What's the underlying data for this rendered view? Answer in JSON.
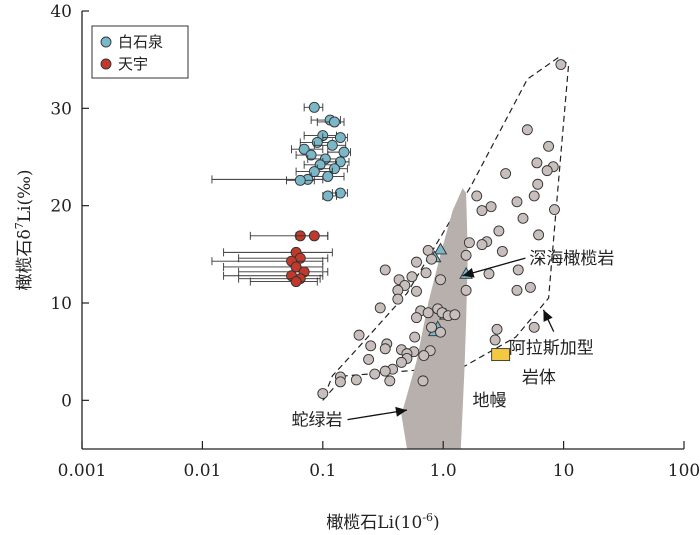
{
  "chart_data": {
    "type": "scatter",
    "xscale": "log",
    "xlim": [
      0.001,
      100
    ],
    "ylim": [
      -5,
      40
    ],
    "xticks": [
      0.001,
      0.01,
      0.1,
      1.0,
      10,
      100
    ],
    "xtick_labels": [
      "0.001",
      "0.01",
      "0.1",
      "1.0",
      "10",
      "100"
    ],
    "yticks": [
      0,
      10,
      20,
      30,
      40
    ],
    "ytick_labels": [
      "0",
      "10",
      "20",
      "30",
      "40"
    ],
    "xlabel_prefix": "橄榄石Li(10",
    "xlabel_sup": "-6",
    "xlabel_suffix": ")",
    "ylabel_prefix": "橄榄石δ",
    "ylabel_sup": "7",
    "ylabel_suffix": "Li(‰)",
    "grid": false,
    "legend": {
      "position": "top-left",
      "entries": [
        {
          "label": "白石泉",
          "color": "#7ab8c9"
        },
        {
          "label": "天宇",
          "color": "#c0392b"
        }
      ]
    },
    "series": [
      {
        "name": "白石泉",
        "marker": "circle",
        "color": "#7ab8c9",
        "points": [
          {
            "x": 0.085,
            "y": 30.1,
            "xerr": [
              0.07,
              0.1
            ]
          },
          {
            "x": 0.115,
            "y": 28.8,
            "xerr": [
              0.08,
              0.14
            ]
          },
          {
            "x": 0.125,
            "y": 28.6,
            "xerr": [
              0.09,
              0.15
            ]
          },
          {
            "x": 0.1,
            "y": 27.2,
            "xerr": [
              0.07,
              0.13
            ]
          },
          {
            "x": 0.14,
            "y": 27.0,
            "xerr": [
              0.1,
              0.16
            ]
          },
          {
            "x": 0.09,
            "y": 26.5,
            "xerr": [
              0.065,
              0.12
            ]
          },
          {
            "x": 0.12,
            "y": 26.2,
            "xerr": [
              0.085,
              0.155
            ]
          },
          {
            "x": 0.07,
            "y": 25.8,
            "xerr": [
              0.055,
              0.1
            ]
          },
          {
            "x": 0.15,
            "y": 25.5,
            "xerr": [
              0.11,
              0.17
            ]
          },
          {
            "x": 0.08,
            "y": 25.2,
            "xerr": [
              0.06,
              0.11
            ]
          },
          {
            "x": 0.105,
            "y": 24.8,
            "xerr": [
              0.075,
              0.14
            ]
          },
          {
            "x": 0.14,
            "y": 24.5,
            "xerr": [
              0.1,
              0.165
            ]
          },
          {
            "x": 0.095,
            "y": 24.2,
            "xerr": [
              0.07,
              0.13
            ]
          },
          {
            "x": 0.125,
            "y": 23.8,
            "xerr": [
              0.09,
              0.16
            ]
          },
          {
            "x": 0.085,
            "y": 23.5,
            "xerr": [
              0.06,
              0.12
            ]
          },
          {
            "x": 0.11,
            "y": 23.0,
            "xerr": [
              0.08,
              0.15
            ]
          },
          {
            "x": 0.075,
            "y": 22.7,
            "xerr": [
              0.012,
              0.1
            ]
          },
          {
            "x": 0.065,
            "y": 22.6,
            "xerr": [
              0.05,
              0.085
            ]
          },
          {
            "x": 0.14,
            "y": 21.3,
            "xerr": [
              0.12,
              0.16
            ]
          },
          {
            "x": 0.11,
            "y": 21.0,
            "xerr": [
              0.1,
              0.13
            ]
          }
        ]
      },
      {
        "name": "天宇",
        "marker": "circle",
        "color": "#c0392b",
        "points": [
          {
            "x": 0.065,
            "y": 16.9,
            "xerr": [
              0.025,
              0.11
            ]
          },
          {
            "x": 0.085,
            "y": 16.9,
            "xerr": [
              0.06,
              0.11
            ]
          },
          {
            "x": 0.06,
            "y": 15.2,
            "xerr": [
              0.015,
              0.12
            ]
          },
          {
            "x": 0.065,
            "y": 14.6,
            "xerr": [
              0.02,
              0.11
            ]
          },
          {
            "x": 0.055,
            "y": 14.3,
            "xerr": [
              0.012,
              0.1
            ]
          },
          {
            "x": 0.06,
            "y": 13.7,
            "xerr": [
              0.015,
              0.1
            ]
          },
          {
            "x": 0.07,
            "y": 13.2,
            "xerr": [
              0.02,
              0.11
            ]
          },
          {
            "x": 0.055,
            "y": 12.8,
            "xerr": [
              0.015,
              0.1
            ]
          },
          {
            "x": 0.065,
            "y": 12.5,
            "xerr": [
              0.02,
              0.095
            ]
          },
          {
            "x": 0.06,
            "y": 12.2,
            "xerr": [
              0.025,
              0.09
            ]
          }
        ]
      },
      {
        "name": "深海橄榄岩",
        "marker": "triangle",
        "color": "#7ab8c9",
        "points": [
          {
            "x": 0.95,
            "y": 15.5
          },
          {
            "x": 0.85,
            "y": 14.7
          },
          {
            "x": 1.55,
            "y": 13.0
          },
          {
            "x": 1.05,
            "y": 8.8
          },
          {
            "x": 0.9,
            "y": 7.5
          },
          {
            "x": 0.85,
            "y": 7.1
          }
        ]
      },
      {
        "name": "阿拉斯加型岩体",
        "marker": "square",
        "color": "#f5c842",
        "points": [
          {
            "x": 3.0,
            "y": 4.7
          }
        ]
      },
      {
        "name": "",
        "marker": "circle",
        "color": "#c8bfbd",
        "points": [
          {
            "x": 9.5,
            "y": 34.5
          },
          {
            "x": 5.0,
            "y": 27.8
          },
          {
            "x": 7.5,
            "y": 26.1
          },
          {
            "x": 6.0,
            "y": 24.4
          },
          {
            "x": 8.2,
            "y": 24.0
          },
          {
            "x": 7.3,
            "y": 23.6
          },
          {
            "x": 3.3,
            "y": 23.3
          },
          {
            "x": 6.1,
            "y": 22.2
          },
          {
            "x": 5.7,
            "y": 21.0
          },
          {
            "x": 1.9,
            "y": 21.0
          },
          {
            "x": 4.1,
            "y": 20.4
          },
          {
            "x": 2.5,
            "y": 19.9
          },
          {
            "x": 8.4,
            "y": 19.6
          },
          {
            "x": 2.1,
            "y": 19.5
          },
          {
            "x": 4.6,
            "y": 18.7
          },
          {
            "x": 6.2,
            "y": 17.0
          },
          {
            "x": 2.9,
            "y": 17.4
          },
          {
            "x": 2.3,
            "y": 16.3
          },
          {
            "x": 1.65,
            "y": 16.2
          },
          {
            "x": 2.1,
            "y": 16.0
          },
          {
            "x": 3.1,
            "y": 15.3
          },
          {
            "x": 1.55,
            "y": 14.9
          },
          {
            "x": 0.75,
            "y": 15.4
          },
          {
            "x": 0.8,
            "y": 14.5
          },
          {
            "x": 0.6,
            "y": 14.2
          },
          {
            "x": 0.33,
            "y": 13.4
          },
          {
            "x": 4.2,
            "y": 13.4
          },
          {
            "x": 0.72,
            "y": 13.1
          },
          {
            "x": 2.4,
            "y": 13.0
          },
          {
            "x": 0.55,
            "y": 12.7
          },
          {
            "x": 0.43,
            "y": 12.4
          },
          {
            "x": 0.95,
            "y": 12.4
          },
          {
            "x": 0.48,
            "y": 11.8
          },
          {
            "x": 0.42,
            "y": 11.3
          },
          {
            "x": 0.6,
            "y": 11.2
          },
          {
            "x": 1.55,
            "y": 11.3
          },
          {
            "x": 4.1,
            "y": 11.3
          },
          {
            "x": 5.3,
            "y": 11.6
          },
          {
            "x": 0.42,
            "y": 10.4
          },
          {
            "x": 0.3,
            "y": 9.5
          },
          {
            "x": 0.65,
            "y": 9.2
          },
          {
            "x": 0.75,
            "y": 9.0
          },
          {
            "x": 0.9,
            "y": 9.4
          },
          {
            "x": 0.6,
            "y": 8.5
          },
          {
            "x": 0.98,
            "y": 9.0
          },
          {
            "x": 1.1,
            "y": 8.7
          },
          {
            "x": 1.25,
            "y": 8.8
          },
          {
            "x": 0.8,
            "y": 7.5
          },
          {
            "x": 0.95,
            "y": 7.0
          },
          {
            "x": 2.8,
            "y": 7.3
          },
          {
            "x": 5.7,
            "y": 7.5
          },
          {
            "x": 0.2,
            "y": 6.7
          },
          {
            "x": 0.58,
            "y": 6.5
          },
          {
            "x": 2.7,
            "y": 6.2
          },
          {
            "x": 0.34,
            "y": 5.8
          },
          {
            "x": 0.25,
            "y": 5.6
          },
          {
            "x": 0.33,
            "y": 5.3
          },
          {
            "x": 0.45,
            "y": 5.2
          },
          {
            "x": 0.78,
            "y": 5.1
          },
          {
            "x": 0.57,
            "y": 5.0
          },
          {
            "x": 0.5,
            "y": 4.8
          },
          {
            "x": 0.69,
            "y": 4.6
          },
          {
            "x": 0.5,
            "y": 4.3
          },
          {
            "x": 0.24,
            "y": 4.2
          },
          {
            "x": 0.45,
            "y": 3.9
          },
          {
            "x": 0.38,
            "y": 3.2
          },
          {
            "x": 0.33,
            "y": 3.0
          },
          {
            "x": 0.27,
            "y": 2.7
          },
          {
            "x": 0.14,
            "y": 2.4
          },
          {
            "x": 0.19,
            "y": 2.1
          },
          {
            "x": 0.14,
            "y": 1.9
          },
          {
            "x": 0.68,
            "y": 2.0
          },
          {
            "x": 0.36,
            "y": 2.0
          },
          {
            "x": 0.1,
            "y": 0.7
          }
        ]
      }
    ],
    "regions": [
      {
        "name": "深海橄榄岩-field",
        "style": "dashed-outline",
        "polygon": [
          [
            0.1,
            0
          ],
          [
            0.15,
            2.5
          ],
          [
            1.5,
            3.5
          ],
          [
            4.0,
            6.5
          ],
          [
            7.5,
            10.5
          ],
          [
            9.0,
            22.0
          ],
          [
            11.0,
            34.5
          ],
          [
            9.0,
            35.2
          ],
          [
            5.0,
            33.0
          ],
          [
            1.7,
            22.0
          ],
          [
            0.5,
            11.0
          ],
          [
            0.2,
            5.5
          ],
          [
            0.12,
            2.5
          ]
        ]
      },
      {
        "name": "地幔-field",
        "style": "gray-fill",
        "color": "#b8b0ad",
        "polygon": [
          [
            0.5,
            -5
          ],
          [
            0.45,
            -1.5
          ],
          [
            0.6,
            4
          ],
          [
            0.75,
            10
          ],
          [
            0.95,
            15
          ],
          [
            1.2,
            19.5
          ],
          [
            1.45,
            21.8
          ],
          [
            1.55,
            21.3
          ],
          [
            1.6,
            15
          ],
          [
            1.55,
            8
          ],
          [
            1.5,
            3
          ],
          [
            1.4,
            -5
          ]
        ]
      }
    ],
    "annotations": [
      {
        "text": "深海橄榄岩",
        "x": 5.2,
        "y": 14.0,
        "arrow_to": [
          1.45,
          12.8
        ]
      },
      {
        "text": "阿拉斯加型",
        "x": 3.5,
        "y": 4.8,
        "arrow_to": [
          6.8,
          9.3
        ]
      },
      {
        "text": "岩体",
        "x": 4.5,
        "y": 1.8
      },
      {
        "text": "蛇绿岩",
        "x": 0.055,
        "y": -2.6,
        "arrow_to": [
          0.5,
          -1.0
        ]
      },
      {
        "text": "地幔",
        "x": 1.75,
        "y": -0.6
      }
    ]
  }
}
